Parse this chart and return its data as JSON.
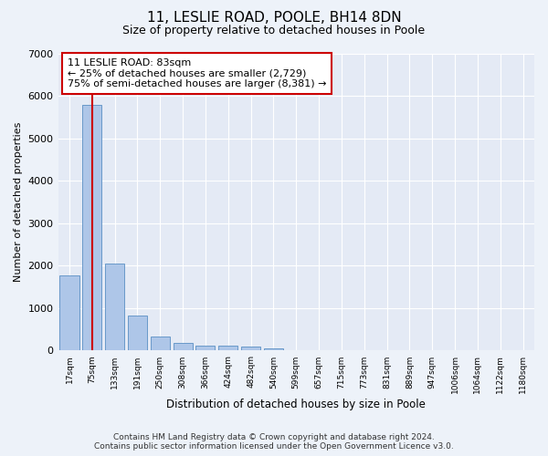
{
  "title": "11, LESLIE ROAD, POOLE, BH14 8DN",
  "subtitle": "Size of property relative to detached houses in Poole",
  "xlabel": "Distribution of detached houses by size in Poole",
  "ylabel": "Number of detached properties",
  "bar_labels": [
    "17sqm",
    "75sqm",
    "133sqm",
    "191sqm",
    "250sqm",
    "308sqm",
    "366sqm",
    "424sqm",
    "482sqm",
    "540sqm",
    "599sqm",
    "657sqm",
    "715sqm",
    "773sqm",
    "831sqm",
    "889sqm",
    "947sqm",
    "1006sqm",
    "1064sqm",
    "1122sqm",
    "1180sqm"
  ],
  "bar_values": [
    1780,
    5800,
    2060,
    820,
    340,
    185,
    120,
    110,
    95,
    60,
    0,
    0,
    0,
    0,
    0,
    0,
    0,
    0,
    0,
    0,
    0
  ],
  "bar_color": "#aec6e8",
  "bar_edge_color": "#5a8fc3",
  "vline_x_index": 1,
  "vline_color": "#cc0000",
  "annotation_text": "11 LESLIE ROAD: 83sqm\n← 25% of detached houses are smaller (2,729)\n75% of semi-detached houses are larger (8,381) →",
  "annotation_box_facecolor": "#ffffff",
  "annotation_box_edgecolor": "#cc0000",
  "ylim": [
    0,
    7000
  ],
  "yticks": [
    0,
    1000,
    2000,
    3000,
    4000,
    5000,
    6000,
    7000
  ],
  "bg_color": "#edf2f9",
  "plot_bg_color": "#e4eaf5",
  "grid_color": "#ffffff",
  "footer_line1": "Contains HM Land Registry data © Crown copyright and database right 2024.",
  "footer_line2": "Contains public sector information licensed under the Open Government Licence v3.0."
}
